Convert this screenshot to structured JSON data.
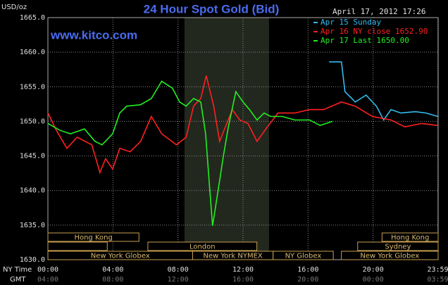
{
  "chart_data": {
    "type": "line",
    "title": "24 Hour Spot Gold (Bid)",
    "y_label": "USD/oz",
    "timestamp": "April 17, 2012 17:26",
    "watermark": "www.kitco.com",
    "x_label": "NY Time",
    "x2_label": "GMT",
    "xlim": [
      0,
      24
    ],
    "xticks": [
      {
        "value": 0,
        "label": "00:00"
      },
      {
        "value": 4,
        "label": "04:00"
      },
      {
        "value": 8,
        "label": "08:00"
      },
      {
        "value": 12,
        "label": "12:00"
      },
      {
        "value": 16,
        "label": "16:00"
      },
      {
        "value": 20,
        "label": "20:00"
      },
      {
        "value": 23.98,
        "label": "23:59"
      }
    ],
    "x2ticks": [
      "04:00",
      "08:00",
      "12:00",
      "16:00",
      "20:00",
      "00:00",
      "03:59"
    ],
    "ylim": [
      1630,
      1665
    ],
    "yticks": [
      {
        "value": 1630,
        "label": "1630.0"
      },
      {
        "value": 1635,
        "label": "1635.0"
      },
      {
        "value": 1640,
        "label": "1640.0"
      },
      {
        "value": 1645,
        "label": "1645.0"
      },
      {
        "value": 1650,
        "label": "1650.0"
      },
      {
        "value": 1655,
        "label": "1655.0"
      },
      {
        "value": 1660,
        "label": "1660.0"
      },
      {
        "value": 1665,
        "label": "1665.0"
      }
    ],
    "grid": true,
    "highlight": [
      8.4,
      13.6
    ],
    "series": [
      {
        "name": "Apr 15 Sunday",
        "color": "#33bbee",
        "x": [
          17.3,
          18.05,
          18.27,
          18.9,
          19.57,
          20.2,
          20.65,
          21.1,
          21.7,
          22.6,
          23.25,
          23.98
        ],
        "values": [
          1658.6,
          1658.6,
          1654.3,
          1652.8,
          1653.8,
          1652.2,
          1650.2,
          1651.7,
          1651.2,
          1651.4,
          1651.2,
          1650.7
        ]
      },
      {
        "name": "Apr 16 NY close 1652.90",
        "color": "#ff2020",
        "x": [
          0,
          0.52,
          1.17,
          1.8,
          2.7,
          3.2,
          3.55,
          3.98,
          4.42,
          5.06,
          5.7,
          6.36,
          7.0,
          7.9,
          8.5,
          8.96,
          9.4,
          9.74,
          10.2,
          10.56,
          11.0,
          11.34,
          11.8,
          12.3,
          12.86,
          13.5,
          14.15,
          15.2,
          16.1,
          16.97,
          18.05,
          18.9,
          19.96,
          21.1,
          21.95,
          23.0,
          23.98
        ],
        "values": [
          1651.2,
          1648.7,
          1646.1,
          1647.7,
          1646.6,
          1642.6,
          1644.6,
          1643.1,
          1646.1,
          1645.6,
          1647.1,
          1650.7,
          1648.2,
          1646.6,
          1647.7,
          1652.2,
          1653.3,
          1656.6,
          1652.2,
          1647.1,
          1649.7,
          1651.7,
          1650.2,
          1649.7,
          1647.1,
          1649.2,
          1651.2,
          1651.2,
          1651.7,
          1651.7,
          1652.8,
          1652.2,
          1650.7,
          1650.2,
          1649.2,
          1649.7,
          1649.4
        ]
      },
      {
        "name": "Apr 17 Last 1650.00",
        "color": "#22ee22",
        "x": [
          0,
          0.74,
          1.39,
          2.25,
          2.9,
          3.33,
          3.98,
          4.42,
          4.85,
          5.7,
          6.36,
          7.0,
          7.66,
          8.1,
          8.5,
          8.96,
          9.4,
          9.7,
          9.96,
          10.13,
          10.4,
          10.8,
          11.1,
          11.56,
          12.0,
          12.4,
          12.86,
          13.3,
          13.7,
          14.4,
          15.2,
          16.1,
          16.75,
          17.5
        ],
        "values": [
          1649.7,
          1648.7,
          1648.2,
          1648.9,
          1647.1,
          1646.6,
          1648.2,
          1651.2,
          1652.2,
          1652.4,
          1653.3,
          1655.8,
          1654.8,
          1652.8,
          1652.2,
          1653.3,
          1652.8,
          1648.2,
          1640.0,
          1634.9,
          1639.0,
          1645.1,
          1649.2,
          1654.3,
          1652.8,
          1651.7,
          1650.2,
          1651.2,
          1650.7,
          1650.7,
          1650.2,
          1650.2,
          1649.4,
          1650.0
        ]
      }
    ],
    "markets": [
      {
        "name": "Hong Kong",
        "start": 0,
        "end": 5.6
      },
      {
        "name": "Hong Kong",
        "start": 20.55,
        "end": 24
      },
      {
        "name": null,
        "start": 0,
        "end": 3.65
      },
      {
        "name": "London",
        "start": 6.15,
        "end": 12.85
      },
      {
        "name": "Sydney",
        "start": 19.05,
        "end": 24
      },
      {
        "name": "New York Globex",
        "start": 0,
        "end": 8.9
      },
      {
        "name": "New York NYMEX",
        "start": 8.9,
        "end": 13.85
      },
      {
        "name": "NY Globex",
        "start": 13.85,
        "end": 17.55
      },
      {
        "name": "New York Globex",
        "start": 18.05,
        "end": 24
      }
    ]
  }
}
